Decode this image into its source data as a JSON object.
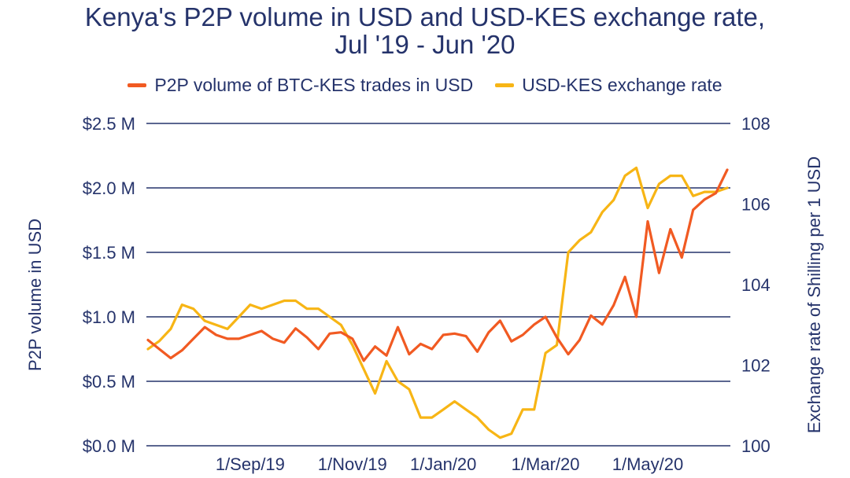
{
  "chart_data": {
    "type": "line",
    "title_line1": "Kenya's P2P volume in USD and USD-KES exchange rate,",
    "title_line2": "Jul '19 - Jun '20",
    "ylabel_left": "P2P volume in USD",
    "ylabel_right": "Exchange rate of Shilling per 1 USD",
    "y_left_range": [
      0,
      2.5
    ],
    "y_left_ticks": [
      "$0.0 M",
      "$0.5 M",
      "$1.0 M",
      "$1.5 M",
      "$2.0 M",
      "$2.5 M"
    ],
    "y_left_tick_values": [
      0,
      0.5,
      1.0,
      1.5,
      2.0,
      2.5
    ],
    "y_right_range": [
      100,
      108
    ],
    "y_right_ticks": [
      "100",
      "102",
      "104",
      "106",
      "108"
    ],
    "y_right_tick_values": [
      100,
      102,
      104,
      106,
      108
    ],
    "x_ticks": [
      "1/Sep/19",
      "1/Nov/19",
      "1/Jan/20",
      "1/Mar/20",
      "1/May/20"
    ],
    "x_tick_indices": [
      9,
      18,
      26,
      35,
      44
    ],
    "grid": true,
    "legend_position": "top",
    "series": [
      {
        "name": "P2P volume of BTC-KES trades in USD",
        "color": "#f15a22",
        "axis": "left",
        "values": [
          0.82,
          0.75,
          0.68,
          0.74,
          0.83,
          0.92,
          0.86,
          0.83,
          0.83,
          0.86,
          0.89,
          0.83,
          0.8,
          0.91,
          0.84,
          0.75,
          0.87,
          0.88,
          0.83,
          0.66,
          0.77,
          0.7,
          0.92,
          0.71,
          0.79,
          0.75,
          0.86,
          0.87,
          0.85,
          0.73,
          0.88,
          0.97,
          0.81,
          0.86,
          0.94,
          1.0,
          0.84,
          0.71,
          0.82,
          1.01,
          0.94,
          1.09,
          1.31,
          1.0,
          1.74,
          1.34,
          1.68,
          1.46,
          1.83,
          1.91,
          1.96,
          2.14
        ]
      },
      {
        "name": "USD-KES exchange rate",
        "color": "#f7b515",
        "axis": "right",
        "values": [
          102.4,
          102.6,
          102.9,
          103.5,
          103.4,
          103.1,
          103.0,
          102.9,
          103.2,
          103.5,
          103.4,
          103.5,
          103.6,
          103.6,
          103.4,
          103.4,
          103.2,
          103.0,
          102.5,
          101.9,
          101.3,
          102.1,
          101.6,
          101.4,
          100.7,
          100.7,
          100.9,
          101.1,
          100.9,
          100.7,
          100.4,
          100.2,
          100.3,
          100.9,
          100.9,
          102.3,
          102.5,
          104.8,
          105.1,
          105.3,
          105.8,
          106.1,
          106.7,
          106.9,
          105.9,
          106.5,
          106.7,
          106.7,
          106.2,
          106.3,
          106.3,
          106.4
        ]
      }
    ]
  }
}
